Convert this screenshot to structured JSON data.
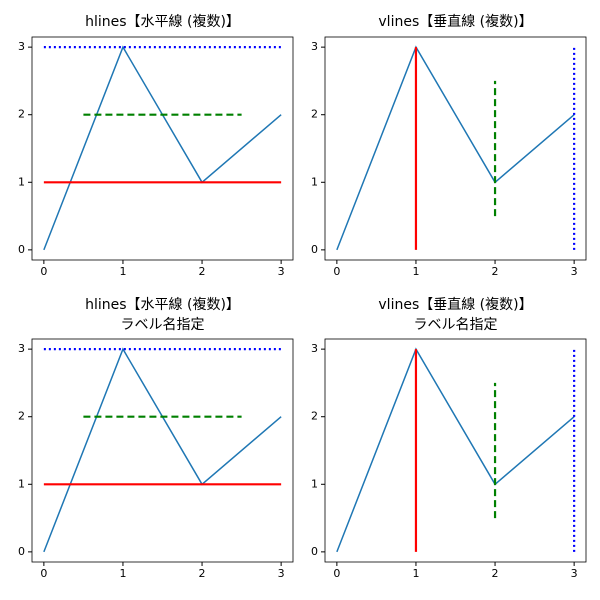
{
  "chart_data": [
    {
      "type": "line",
      "title": [
        "hlines【水平線 (複数)】"
      ],
      "x": [
        0,
        1,
        2,
        3
      ],
      "series": [
        {
          "color": "#1f77b4",
          "values": [
            0,
            3,
            1,
            2
          ]
        }
      ],
      "hlines": [
        {
          "y": 1,
          "xmin": 0,
          "xmax": 3,
          "color": "red",
          "style": "solid"
        },
        {
          "y": 2,
          "xmin": 0.5,
          "xmax": 2.5,
          "color": "green",
          "style": "dashed"
        },
        {
          "y": 3,
          "xmin": 0,
          "xmax": 3,
          "color": "blue",
          "style": "dotted"
        }
      ],
      "xlim": [
        -0.15,
        3.15
      ],
      "ylim": [
        -0.15,
        3.15
      ],
      "xticks": [
        0,
        1,
        2,
        3
      ],
      "yticks": [
        0,
        1,
        2,
        3
      ]
    },
    {
      "type": "line",
      "title": [
        "vlines【垂直線 (複数)】"
      ],
      "x": [
        0,
        1,
        2,
        3
      ],
      "series": [
        {
          "color": "#1f77b4",
          "values": [
            0,
            3,
            1,
            2
          ]
        }
      ],
      "vlines": [
        {
          "x": 1,
          "ymin": 0,
          "ymax": 3,
          "color": "red",
          "style": "solid"
        },
        {
          "x": 2,
          "ymin": 0.5,
          "ymax": 2.5,
          "color": "green",
          "style": "dashed"
        },
        {
          "x": 3,
          "ymin": 0,
          "ymax": 3,
          "color": "blue",
          "style": "dotted"
        }
      ],
      "xlim": [
        -0.15,
        3.15
      ],
      "ylim": [
        -0.15,
        3.15
      ],
      "xticks": [
        0,
        1,
        2,
        3
      ],
      "yticks": [
        0,
        1,
        2,
        3
      ]
    },
    {
      "type": "line",
      "title": [
        "hlines【水平線 (複数)】",
        "ラベル名指定"
      ],
      "x": [
        0,
        1,
        2,
        3
      ],
      "series": [
        {
          "color": "#1f77b4",
          "values": [
            0,
            3,
            1,
            2
          ]
        }
      ],
      "hlines": [
        {
          "y": 1,
          "xmin": 0,
          "xmax": 3,
          "color": "red",
          "style": "solid"
        },
        {
          "y": 2,
          "xmin": 0.5,
          "xmax": 2.5,
          "color": "green",
          "style": "dashed"
        },
        {
          "y": 3,
          "xmin": 0,
          "xmax": 3,
          "color": "blue",
          "style": "dotted"
        }
      ],
      "xlim": [
        -0.15,
        3.15
      ],
      "ylim": [
        -0.15,
        3.15
      ],
      "xticks": [
        0,
        1,
        2,
        3
      ],
      "yticks": [
        0,
        1,
        2,
        3
      ]
    },
    {
      "type": "line",
      "title": [
        "vlines【垂直線 (複数)】",
        "ラベル名指定"
      ],
      "x": [
        0,
        1,
        2,
        3
      ],
      "series": [
        {
          "color": "#1f77b4",
          "values": [
            0,
            3,
            1,
            2
          ]
        }
      ],
      "vlines": [
        {
          "x": 1,
          "ymin": 0,
          "ymax": 3,
          "color": "red",
          "style": "solid"
        },
        {
          "x": 2,
          "ymin": 0.5,
          "ymax": 2.5,
          "color": "green",
          "style": "dashed"
        },
        {
          "x": 3,
          "ymin": 0,
          "ymax": 3,
          "color": "blue",
          "style": "dotted"
        }
      ],
      "xlim": [
        -0.15,
        3.15
      ],
      "ylim": [
        -0.15,
        3.15
      ],
      "xticks": [
        0,
        1,
        2,
        3
      ],
      "yticks": [
        0,
        1,
        2,
        3
      ]
    }
  ]
}
